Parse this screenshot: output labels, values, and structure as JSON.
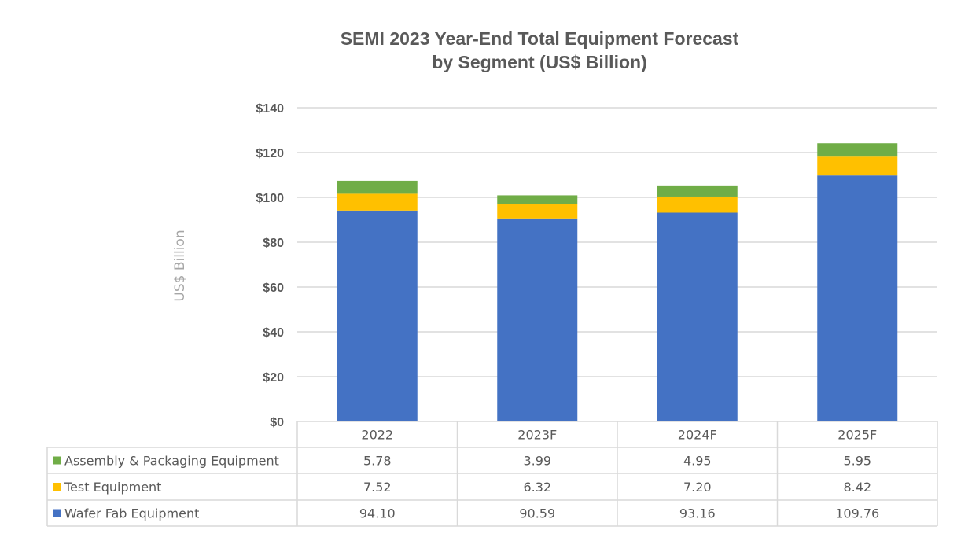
{
  "chart_data": {
    "type": "bar",
    "stacked": true,
    "title": "SEMI 2023 Year-End Total Equipment Forecast by Segment (US$ Billion)",
    "title_lines": [
      "SEMI 2023 Year-End Total Equipment Forecast",
      "by Segment (US$ Billion)"
    ],
    "xlabel": "",
    "ylabel": "US$ Billion",
    "ylim": [
      0,
      140
    ],
    "yticks": [
      0,
      20,
      40,
      60,
      80,
      100,
      120,
      140
    ],
    "ytick_labels": [
      "$0",
      "$20",
      "$40",
      "$60",
      "$80",
      "$100",
      "$120",
      "$140"
    ],
    "grid": true,
    "categories": [
      "2022",
      "2023F",
      "2024F",
      "2025F"
    ],
    "series": [
      {
        "name": "Wafer Fab Equipment",
        "color": "#4472c4",
        "values": [
          94.1,
          90.59,
          93.16,
          109.76
        ],
        "display": [
          "94.10",
          "90.59",
          "93.16",
          "109.76"
        ]
      },
      {
        "name": "Test Equipment",
        "color": "#ffc000",
        "values": [
          7.52,
          6.32,
          7.2,
          8.42
        ],
        "display": [
          "7.52",
          "6.32",
          "7.20",
          "8.42"
        ]
      },
      {
        "name": "Assembly & Packaging Equipment",
        "color": "#70ad47",
        "values": [
          5.78,
          3.99,
          4.95,
          5.95
        ],
        "display": [
          "5.78",
          "3.99",
          "4.95",
          "5.95"
        ]
      }
    ],
    "data_table": {
      "placement": "bottom",
      "row_order": [
        "Assembly & Packaging Equipment",
        "Test Equipment",
        "Wafer Fab Equipment"
      ]
    }
  }
}
